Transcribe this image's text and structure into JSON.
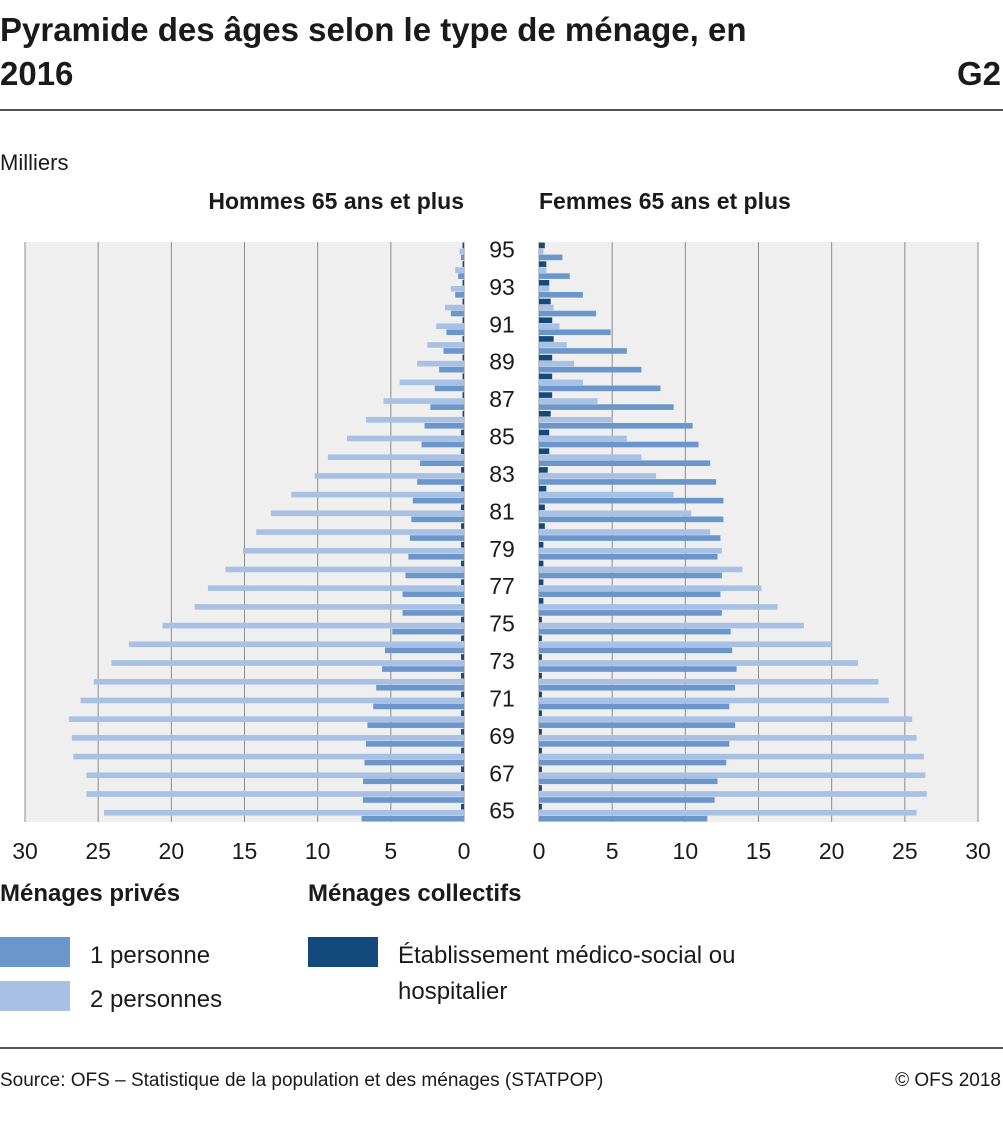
{
  "header": {
    "title": "Pyramide des âges selon le type de ménage, en 2016",
    "code": "G2",
    "unit": "Milliers"
  },
  "legend": {
    "groups": [
      "Ménages privés",
      "Ménages collectifs"
    ]
  },
  "footer": {
    "source": "Source: OFS – Statistique de la population et des ménages (STATPOP)",
    "copyright": "© OFS 2018"
  },
  "chart_data": [
    {
      "type": "bar",
      "orientation": "horizontal",
      "title": "Hommes 65 ans et plus",
      "grid": true,
      "categories": [
        "95",
        null,
        "93",
        null,
        "91",
        null,
        "89",
        null,
        "87",
        null,
        "85",
        null,
        "83",
        null,
        "81",
        null,
        "79",
        null,
        "77",
        null,
        "75",
        null,
        "73",
        null,
        "71",
        null,
        "69",
        null,
        "67",
        null,
        "65"
      ],
      "xlim": [
        30,
        0
      ],
      "xticks": [
        30,
        25,
        20,
        15,
        10,
        5,
        0
      ],
      "series": [
        {
          "name": "1 personne",
          "color": "#6a96cc",
          "values": [
            0.2,
            0.4,
            0.6,
            0.9,
            1.2,
            1.4,
            1.7,
            2.0,
            2.3,
            2.7,
            2.9,
            3.0,
            3.2,
            3.5,
            3.6,
            3.7,
            3.8,
            4.0,
            4.2,
            4.2,
            4.9,
            5.4,
            5.6,
            6.0,
            6.2,
            6.6,
            6.7,
            6.8,
            6.9,
            6.9,
            7.0
          ]
        },
        {
          "name": "2 personnes",
          "color": "#a7c0e4",
          "values": [
            0.3,
            0.6,
            0.9,
            1.3,
            1.9,
            2.5,
            3.2,
            4.4,
            5.5,
            6.7,
            8.0,
            9.3,
            10.2,
            11.8,
            13.2,
            14.2,
            15.1,
            16.3,
            17.5,
            18.4,
            20.6,
            22.9,
            24.1,
            25.3,
            26.2,
            27.0,
            26.8,
            26.7,
            25.8,
            25.8,
            24.6
          ]
        },
        {
          "name": "Établissement médico-social ou hospitalier",
          "color": "#14497c",
          "values": [
            0.1,
            0.1,
            0.1,
            0.1,
            0.1,
            0.1,
            0.1,
            0.1,
            0.1,
            0.1,
            0.2,
            0.2,
            0.2,
            0.2,
            0.2,
            0.2,
            0.2,
            0.2,
            0.2,
            0.2,
            0.2,
            0.2,
            0.2,
            0.2,
            0.2,
            0.2,
            0.2,
            0.2,
            0.2,
            0.2,
            0.2
          ]
        }
      ]
    },
    {
      "type": "bar",
      "orientation": "horizontal",
      "title": "Femmes 65 ans et plus",
      "grid": true,
      "categories": [
        "95",
        null,
        "93",
        null,
        "91",
        null,
        "89",
        null,
        "87",
        null,
        "85",
        null,
        "83",
        null,
        "81",
        null,
        "79",
        null,
        "77",
        null,
        "75",
        null,
        "73",
        null,
        "71",
        null,
        "69",
        null,
        "67",
        null,
        "65"
      ],
      "xlim": [
        0,
        30
      ],
      "xticks": [
        0,
        5,
        10,
        15,
        20,
        25,
        30
      ],
      "series": [
        {
          "name": "1 personne",
          "color": "#6a96cc",
          "values": [
            1.6,
            2.1,
            3.0,
            3.9,
            4.9,
            6.0,
            7.0,
            8.3,
            9.2,
            10.5,
            10.9,
            11.7,
            12.1,
            12.6,
            12.6,
            12.4,
            12.2,
            12.5,
            12.4,
            12.5,
            13.1,
            13.2,
            13.5,
            13.4,
            13.0,
            13.4,
            13.0,
            12.8,
            12.2,
            12.0,
            11.5
          ]
        },
        {
          "name": "2 personnes",
          "color": "#a7c0e4",
          "values": [
            0.3,
            0.5,
            0.7,
            1.0,
            1.4,
            1.9,
            2.4,
            3.0,
            4.0,
            5.0,
            6.0,
            7.0,
            8.0,
            9.2,
            10.4,
            11.7,
            12.5,
            13.9,
            15.2,
            16.3,
            18.1,
            20.0,
            21.8,
            23.2,
            23.9,
            25.5,
            25.8,
            26.3,
            26.4,
            26.5,
            25.8
          ]
        },
        {
          "name": "Établissement médico-social ou hospitalier",
          "color": "#14497c",
          "values": [
            0.4,
            0.5,
            0.7,
            0.8,
            0.9,
            1.0,
            0.9,
            0.9,
            0.9,
            0.8,
            0.7,
            0.7,
            0.6,
            0.5,
            0.4,
            0.4,
            0.3,
            0.3,
            0.3,
            0.3,
            0.2,
            0.2,
            0.2,
            0.2,
            0.2,
            0.2,
            0.2,
            0.2,
            0.2,
            0.2,
            0.2
          ]
        }
      ]
    }
  ]
}
